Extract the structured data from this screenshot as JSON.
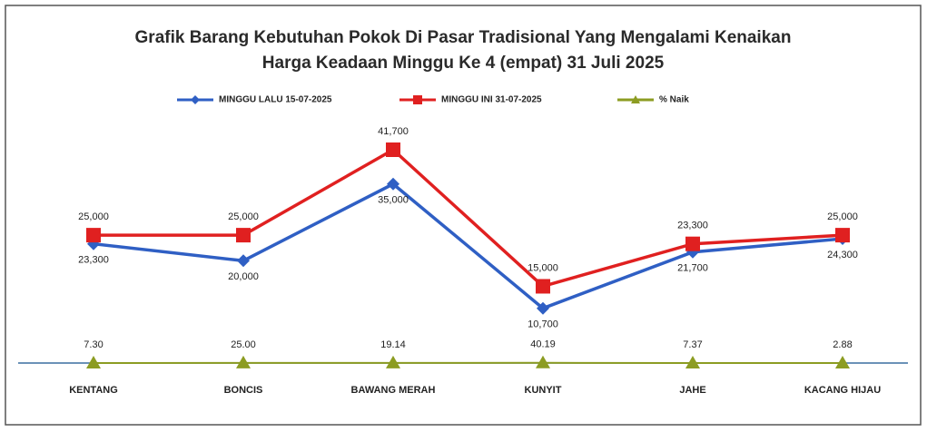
{
  "chart_data": {
    "type": "line",
    "title": [
      "Grafik Barang Kebutuhan Pokok Di Pasar Tradisional Yang Mengalami Kenaikan",
      "Harga Keadaan Minggu Ke 4 (empat) 31 Juli 2025"
    ],
    "categories": [
      "KENTANG",
      "BONCIS",
      "BAWANG MERAH",
      "KUNYIT",
      "JAHE",
      "KACANG HIJAU"
    ],
    "series": [
      {
        "name": "MINGGU LALU 15-07-2025",
        "color": "#2f5fc4",
        "marker": "diamond",
        "values": [
          23300,
          20000,
          35000,
          10700,
          21700,
          24300
        ],
        "value_labels": [
          "23,300",
          "20,000",
          "35,000",
          "10,700",
          "21,700",
          "24,300"
        ]
      },
      {
        "name": "MINGGU INI 31-07-2025",
        "color": "#e02020",
        "marker": "square",
        "values": [
          25000,
          25000,
          41700,
          15000,
          23300,
          25000
        ],
        "value_labels": [
          "25,000",
          "25,000",
          "41,700",
          "15,000",
          "23,300",
          "25,000"
        ]
      },
      {
        "name": "% Naik",
        "color": "#8c9c22",
        "marker": "triangle",
        "values": [
          7.3,
          25,
          19.14,
          40.19,
          7.37,
          2.88
        ],
        "value_labels": [
          "7.30",
          "25.00",
          "19.14",
          "40.19",
          "7.37",
          "2.88"
        ]
      }
    ],
    "legend": "top"
  }
}
